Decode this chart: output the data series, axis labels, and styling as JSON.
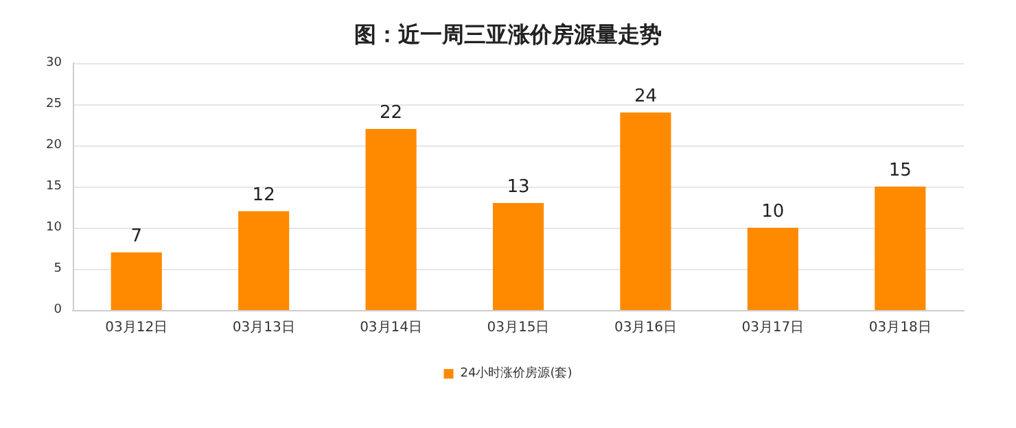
{
  "chart_data": {
    "type": "bar",
    "title": "图：近一周三亚涨价房源量走势",
    "categories": [
      "03月12日",
      "03月13日",
      "03月14日",
      "03月15日",
      "03月16日",
      "03月17日",
      "03月18日"
    ],
    "series": [
      {
        "name": "24小时涨价房源(套)",
        "color": "#ff8a00",
        "values": [
          7,
          12,
          22,
          13,
          24,
          10,
          15
        ]
      }
    ],
    "ylim": [
      0,
      30
    ],
    "yticks": [
      0,
      5,
      10,
      15,
      20,
      25,
      30
    ],
    "grid": "y",
    "legend": "bottom",
    "data_labels": true
  }
}
